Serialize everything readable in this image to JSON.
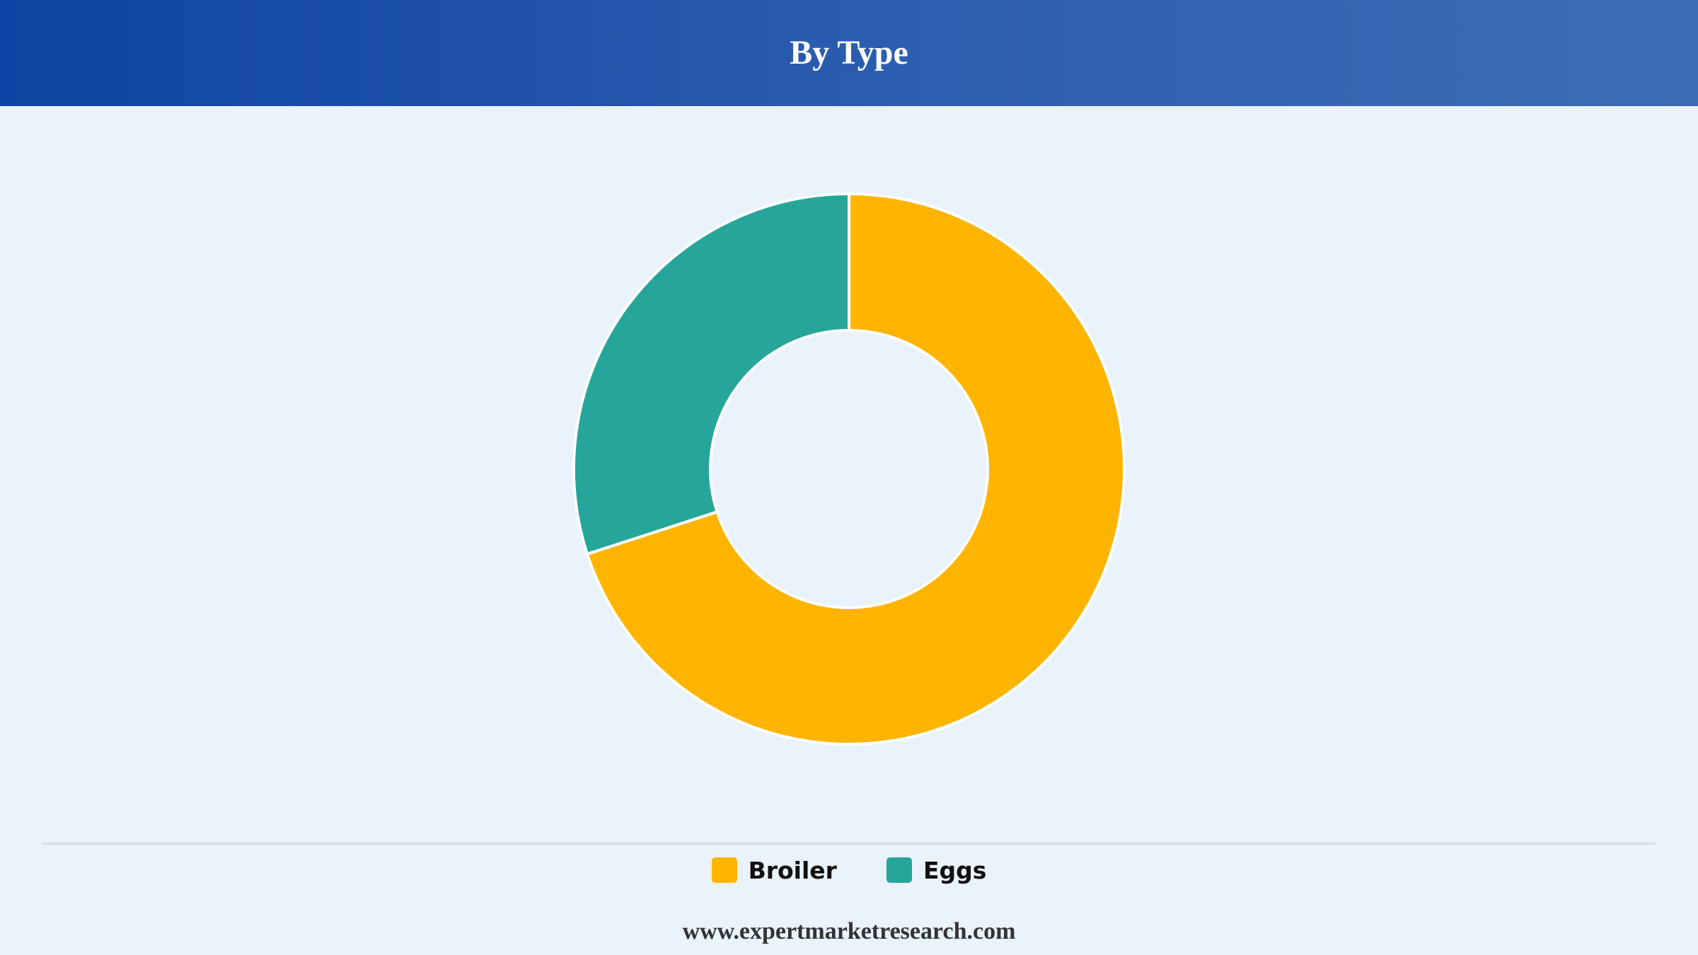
{
  "header": {
    "title": "By Type"
  },
  "chart_data": {
    "type": "pie",
    "variant": "donut",
    "title": "By Type",
    "categories": [
      "Broiler",
      "Eggs"
    ],
    "values": [
      70,
      30
    ],
    "unit": "%",
    "colors": [
      "#ffb400",
      "#26a69a"
    ],
    "slice_border_color": "#ffffff",
    "legend": "bottom-center",
    "start_angle_deg": 0,
    "direction": "clockwise"
  },
  "legend": {
    "items": [
      {
        "label": "Broiler",
        "color": "#ffb400"
      },
      {
        "label": "Eggs",
        "color": "#26a69a"
      }
    ]
  },
  "footer": {
    "source": "www.expertmarketresearch.com"
  }
}
